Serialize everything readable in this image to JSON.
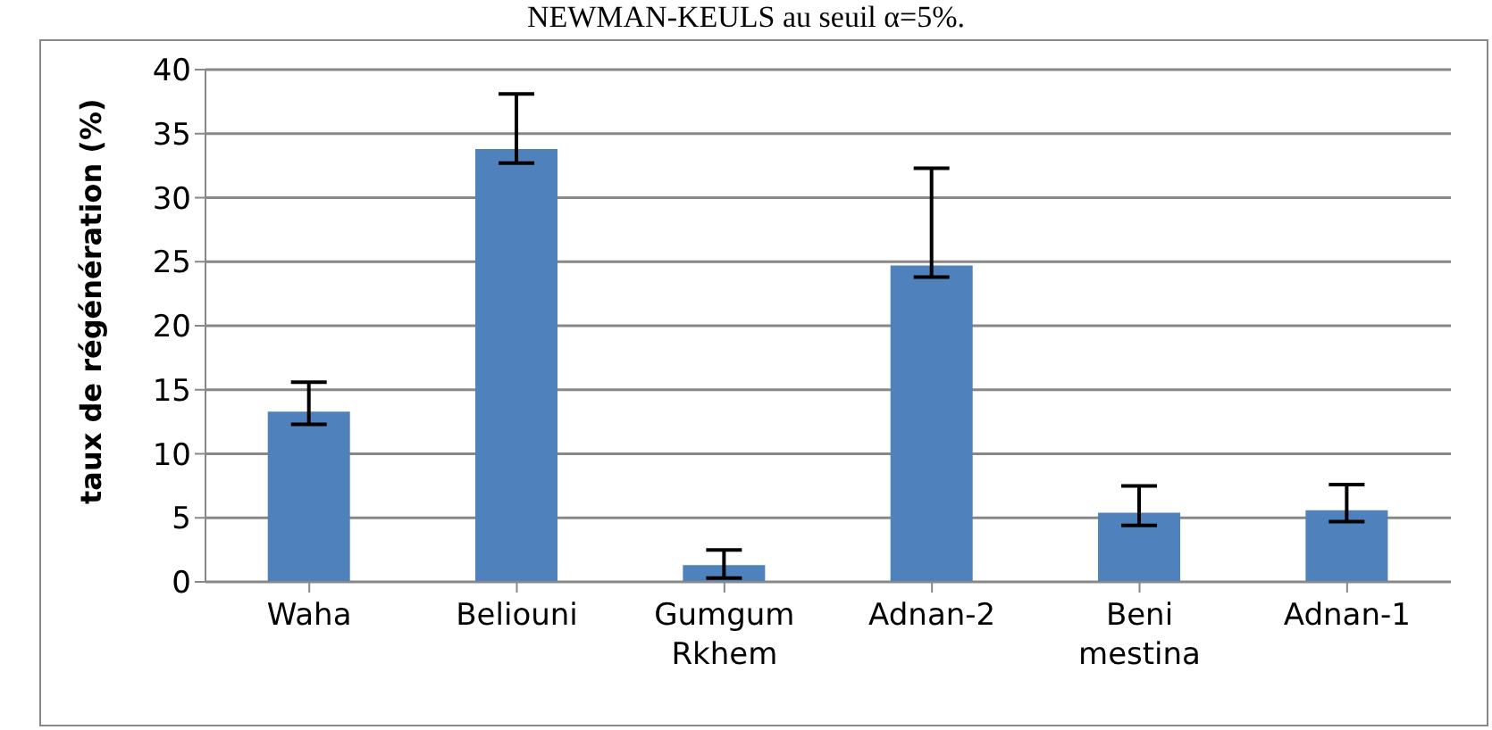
{
  "chart_data": {
    "type": "bar",
    "title": "NEWMAN-KEULS au seuil α=5%.",
    "ylabel": "taux de régénération (%)",
    "categories": [
      "Waha",
      "Beliouni",
      "Gumgum Rkhem",
      "Adnan-2",
      "Beni mestina",
      "Adnan-1"
    ],
    "values": [
      13.3,
      33.8,
      1.3,
      24.7,
      5.4,
      5.6
    ],
    "errors": [
      [
        12.3,
        15.6
      ],
      [
        32.7,
        38.1
      ],
      [
        0.3,
        2.5
      ],
      [
        23.8,
        32.3
      ],
      [
        4.4,
        7.5
      ],
      [
        4.7,
        7.6
      ]
    ],
    "color": "#4f81bd",
    "ylim": [
      0,
      40
    ],
    "yticks": [
      0,
      5,
      10,
      15,
      20,
      25,
      30,
      35,
      40
    ],
    "grid": "y"
  }
}
